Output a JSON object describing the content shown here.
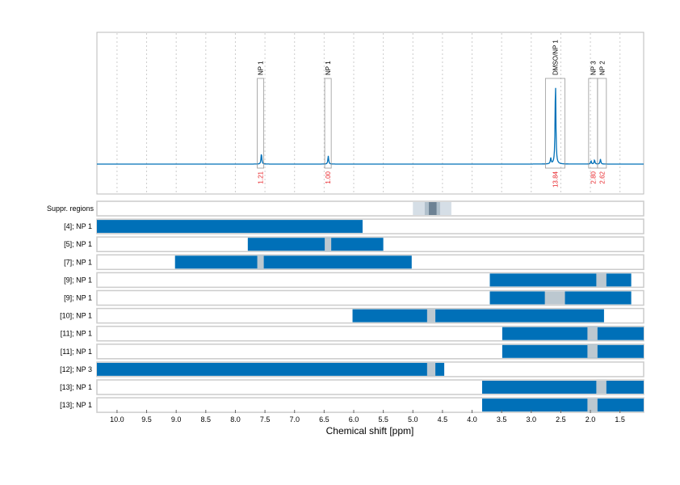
{
  "chart_data": {
    "type": "nmr-spectrum-with-region-bars",
    "xlabel": "Chemical shift [ppm]",
    "xlim": [
      10.34,
      1.1
    ],
    "x_reversed": true,
    "grid": "vertical dotted",
    "xticks": [
      "10.0",
      "9.5",
      "9.0",
      "8.5",
      "8.0",
      "7.5",
      "7.0",
      "6.5",
      "6.0",
      "5.5",
      "5.0",
      "4.5",
      "4.0",
      "3.5",
      "3.0",
      "2.5",
      "2.0",
      "1.5"
    ],
    "colors": {
      "spectrum": "#0070b8",
      "bar": "#0070b8",
      "gap": "#bcc8d0",
      "integral": "#e8262b",
      "box": "#999999"
    },
    "spectrum": {
      "peaks": [
        {
          "ppm": 7.56,
          "height": 0.13
        },
        {
          "ppm": 6.43,
          "height": 0.1
        },
        {
          "ppm": 2.67,
          "height": 0.07
        },
        {
          "ppm": 2.59,
          "height": 1.0
        },
        {
          "ppm": 1.99,
          "height": 0.04
        },
        {
          "ppm": 1.93,
          "height": 0.05
        },
        {
          "ppm": 1.83,
          "height": 0.06
        }
      ]
    },
    "annotations": [
      {
        "label": "NP 1",
        "from": 7.63,
        "to": 7.52,
        "integral": "1.21"
      },
      {
        "label": "NP 1",
        "from": 6.49,
        "to": 6.38,
        "integral": "1.00"
      },
      {
        "label": "DMSO/NP 1",
        "from": 2.76,
        "to": 2.43,
        "integral": "13.84"
      },
      {
        "label": "NP 3",
        "from": 2.03,
        "to": 1.88,
        "integral": "2.80"
      },
      {
        "label": "NP 2",
        "from": 1.88,
        "to": 1.73,
        "integral": "2.62"
      }
    ],
    "suppressed_regions": {
      "label": "Suppr. regions",
      "bands": [
        {
          "from": 5.0,
          "to": 4.35,
          "color": "#d5dee6"
        },
        {
          "from": 4.8,
          "to": 4.54,
          "color": "#b0c0cc"
        },
        {
          "from": 4.73,
          "to": 4.6,
          "color": "#6d8294"
        }
      ]
    },
    "rows": [
      {
        "label": "[4]; NP 1",
        "from": 10.34,
        "to": 5.85,
        "gaps": []
      },
      {
        "label": "[5]; NP 1",
        "from": 7.79,
        "to": 5.5,
        "gaps": [
          [
            6.49,
            6.38
          ]
        ]
      },
      {
        "label": "[7]; NP 1",
        "from": 9.02,
        "to": 5.02,
        "gaps": [
          [
            7.63,
            7.52
          ]
        ]
      },
      {
        "label": "[9]; NP 1",
        "from": 3.7,
        "to": 1.31,
        "gaps": [
          [
            1.9,
            1.73
          ]
        ]
      },
      {
        "label": "[9]; NP 1",
        "from": 3.7,
        "to": 1.31,
        "gaps": [
          [
            2.77,
            2.43
          ]
        ]
      },
      {
        "label": "[10]; NP 1",
        "from": 6.02,
        "to": 1.77,
        "gaps": [
          [
            4.76,
            4.62
          ]
        ]
      },
      {
        "label": "[11]; NP 1",
        "from": 3.49,
        "to": 1.1,
        "gaps": [
          [
            2.05,
            1.88
          ]
        ]
      },
      {
        "label": "[11]; NP 1",
        "from": 3.49,
        "to": 1.1,
        "gaps": [
          [
            2.05,
            1.88
          ]
        ]
      },
      {
        "label": "[12]; NP 3",
        "from": 10.34,
        "to": 4.47,
        "gaps": [
          [
            4.76,
            4.62
          ]
        ]
      },
      {
        "label": "[13]; NP 1",
        "from": 3.83,
        "to": 1.1,
        "gaps": [
          [
            1.9,
            1.73
          ]
        ]
      },
      {
        "label": "[13]; NP 1",
        "from": 3.83,
        "to": 1.1,
        "gaps": [
          [
            2.05,
            1.88
          ]
        ]
      }
    ]
  }
}
